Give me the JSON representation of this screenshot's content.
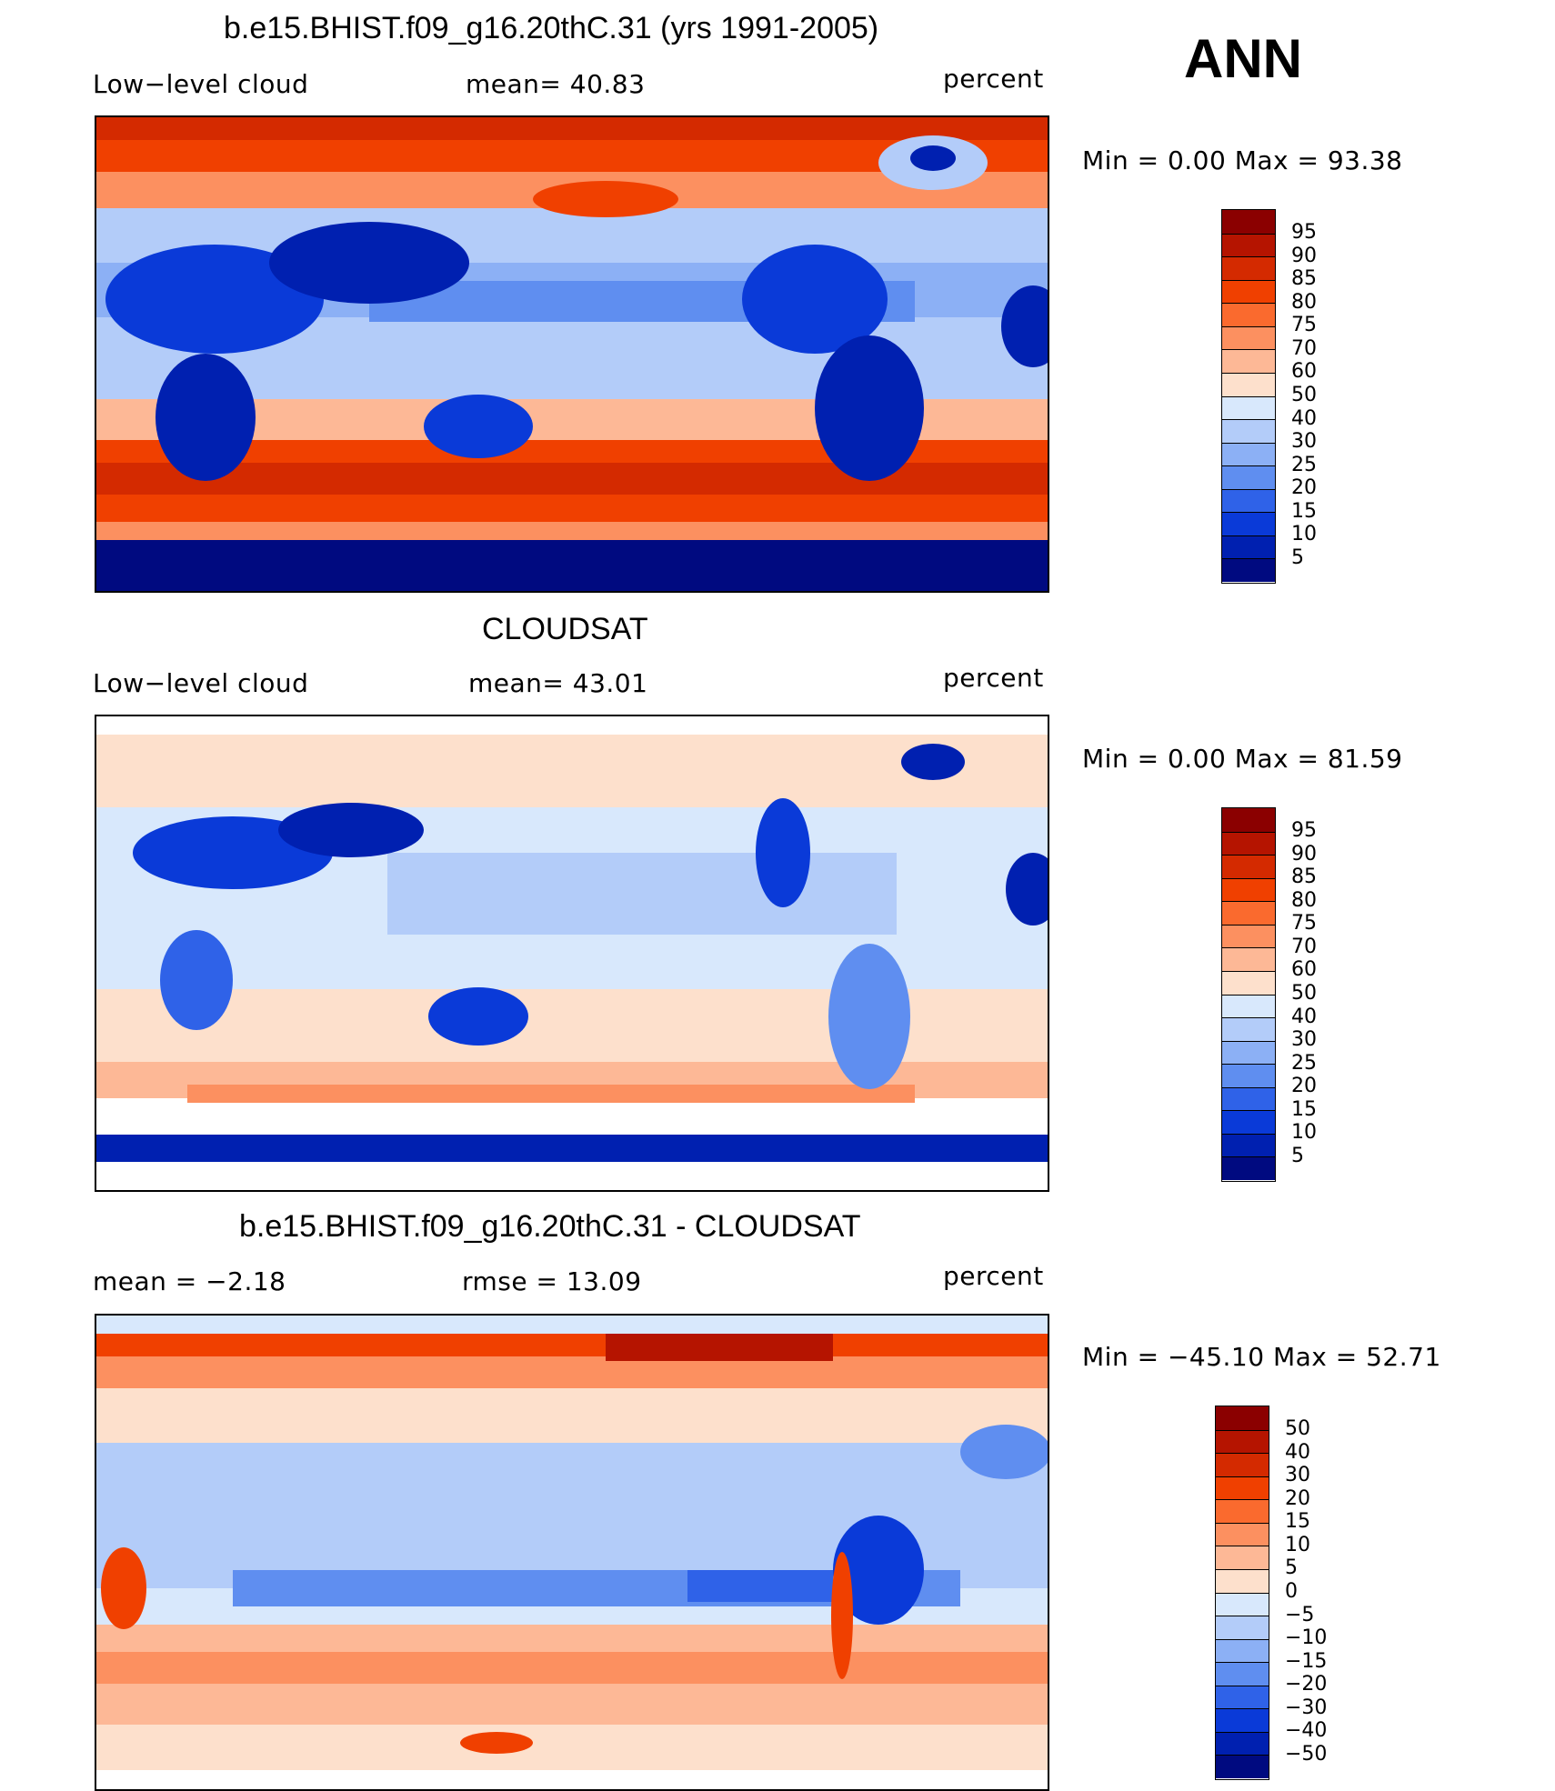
{
  "season": "ANN",
  "panels": [
    {
      "title": "b.e15.BHIST.f09_g16.20thC.31 (yrs 1991-2005)",
      "left_label": "Low−level cloud",
      "center_label": "mean=   40.83",
      "units": "percent",
      "stats": "Min  =     0.00  Max  =    93.38",
      "map_description": "Low-level cloud fraction, model",
      "colorbar": {
        "labels": [
          "95",
          "90",
          "85",
          "80",
          "75",
          "70",
          "60",
          "50",
          "40",
          "30",
          "25",
          "20",
          "15",
          "10",
          "5"
        ],
        "colors": [
          "#8b0000",
          "#b51400",
          "#d42a00",
          "#f04000",
          "#fa6a2e",
          "#fc9060",
          "#fdb896",
          "#fde0cc",
          "#d8e8fc",
          "#b3ccf9",
          "#8cb0f5",
          "#5f8ef0",
          "#2f62e8",
          "#0a3ad8",
          "#0020b0",
          "#000a80"
        ]
      },
      "chart_data": {
        "type": "heatmap",
        "title": "b.e15.BHIST.f09_g16.20thC.31 (yrs 1991-2005)",
        "variable": "Low−level cloud",
        "units": "percent",
        "mean": 40.83,
        "min": 0.0,
        "max": 93.38,
        "contour_levels": [
          5,
          10,
          15,
          20,
          25,
          30,
          40,
          50,
          60,
          70,
          75,
          80,
          85,
          90,
          95
        ]
      }
    },
    {
      "title": "CLOUDSAT",
      "left_label": "Low−level cloud",
      "center_label": "mean=   43.01",
      "units": "percent",
      "stats": "Min  =     0.00  Max  =    81.59",
      "map_description": "Low-level cloud fraction, CloudSat observations",
      "colorbar": {
        "labels": [
          "95",
          "90",
          "85",
          "80",
          "75",
          "70",
          "60",
          "50",
          "40",
          "30",
          "25",
          "20",
          "15",
          "10",
          "5"
        ],
        "colors": [
          "#8b0000",
          "#b51400",
          "#d42a00",
          "#f04000",
          "#fa6a2e",
          "#fc9060",
          "#fdb896",
          "#fde0cc",
          "#d8e8fc",
          "#b3ccf9",
          "#8cb0f5",
          "#5f8ef0",
          "#2f62e8",
          "#0a3ad8",
          "#0020b0",
          "#000a80"
        ]
      },
      "chart_data": {
        "type": "heatmap",
        "title": "CLOUDSAT",
        "variable": "Low−level cloud",
        "units": "percent",
        "mean": 43.01,
        "min": 0.0,
        "max": 81.59,
        "contour_levels": [
          5,
          10,
          15,
          20,
          25,
          30,
          40,
          50,
          60,
          70,
          75,
          80,
          85,
          90,
          95
        ]
      }
    },
    {
      "title": "b.e15.BHIST.f09_g16.20thC.31 - CLOUDSAT",
      "left_label": "mean  =    −2.18",
      "center_label": "rmse  =    13.09",
      "units": "percent",
      "stats": "Min  =  −45.10  Max  =    52.71",
      "map_description": "Model minus CloudSat difference",
      "colorbar": {
        "labels": [
          "50",
          "40",
          "30",
          "20",
          "15",
          "10",
          "5",
          "0",
          "−5",
          "−10",
          "−15",
          "−20",
          "−30",
          "−40",
          "−50"
        ],
        "colors": [
          "#8b0000",
          "#b51400",
          "#d42a00",
          "#f04000",
          "#fa6a2e",
          "#fc9060",
          "#fdb896",
          "#fde0cc",
          "#d8e8fc",
          "#b3ccf9",
          "#8cb0f5",
          "#5f8ef0",
          "#2f62e8",
          "#0a3ad8",
          "#0020b0",
          "#000a80"
        ]
      },
      "chart_data": {
        "type": "heatmap",
        "title": "b.e15.BHIST.f09_g16.20thC.31 - CLOUDSAT",
        "units": "percent",
        "mean": -2.18,
        "rmse": 13.09,
        "min": -45.1,
        "max": 52.71,
        "contour_levels": [
          -50,
          -40,
          -30,
          -20,
          -15,
          -10,
          -5,
          0,
          5,
          10,
          15,
          20,
          30,
          40,
          50
        ]
      }
    }
  ]
}
